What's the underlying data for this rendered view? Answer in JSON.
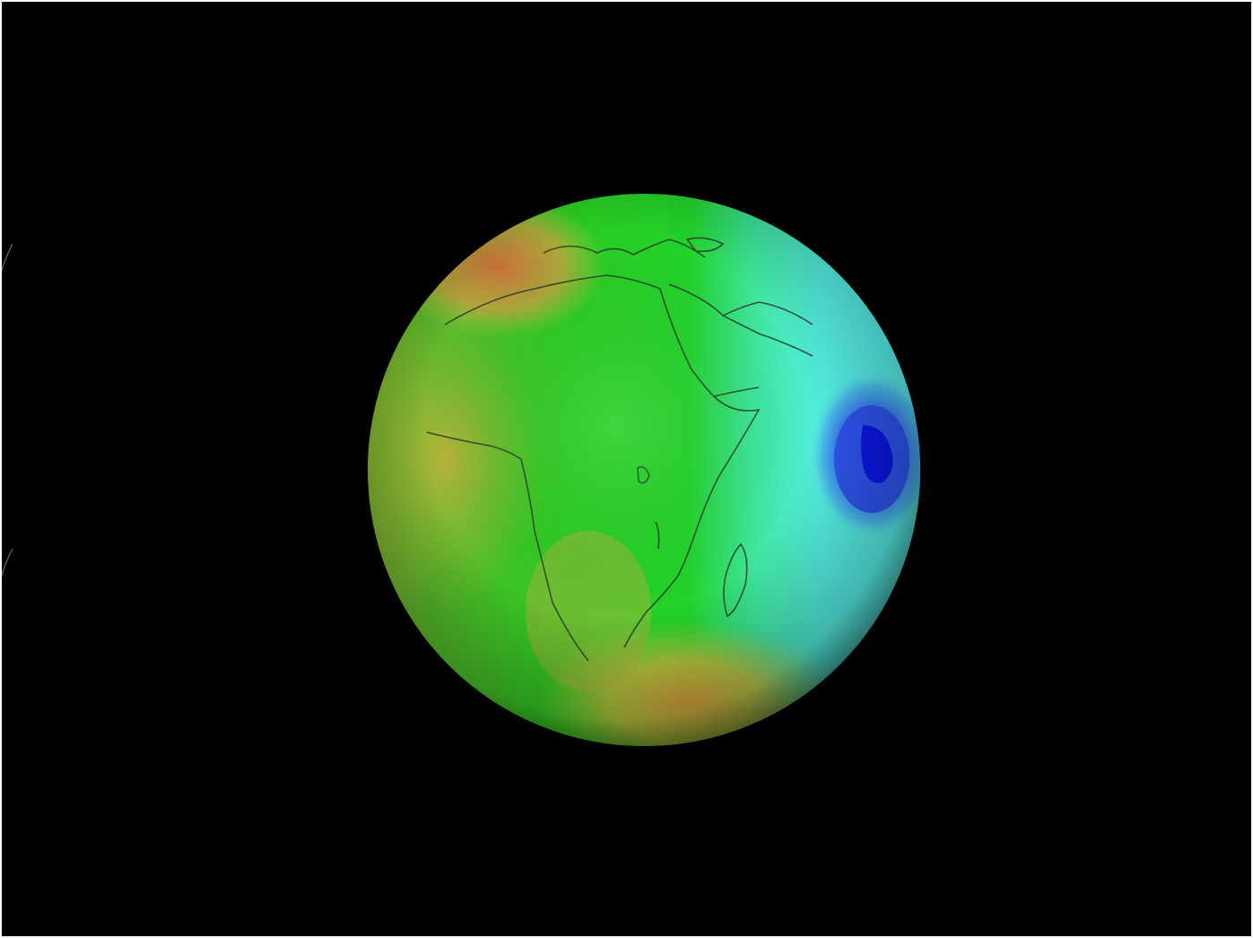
{
  "image": {
    "subject": "globe-geoid-anomaly",
    "background_color": "#000000",
    "colors": {
      "low_anomaly_deep": "#0b16e6",
      "low_anomaly": "#3a6cf2",
      "cyan_zone": "#4ff0ee",
      "green_zone": "#1ccf1e",
      "yellow_zone": "#c8c832",
      "orange_zone": "#c9763a",
      "coastline": "#2b3b2a"
    }
  }
}
